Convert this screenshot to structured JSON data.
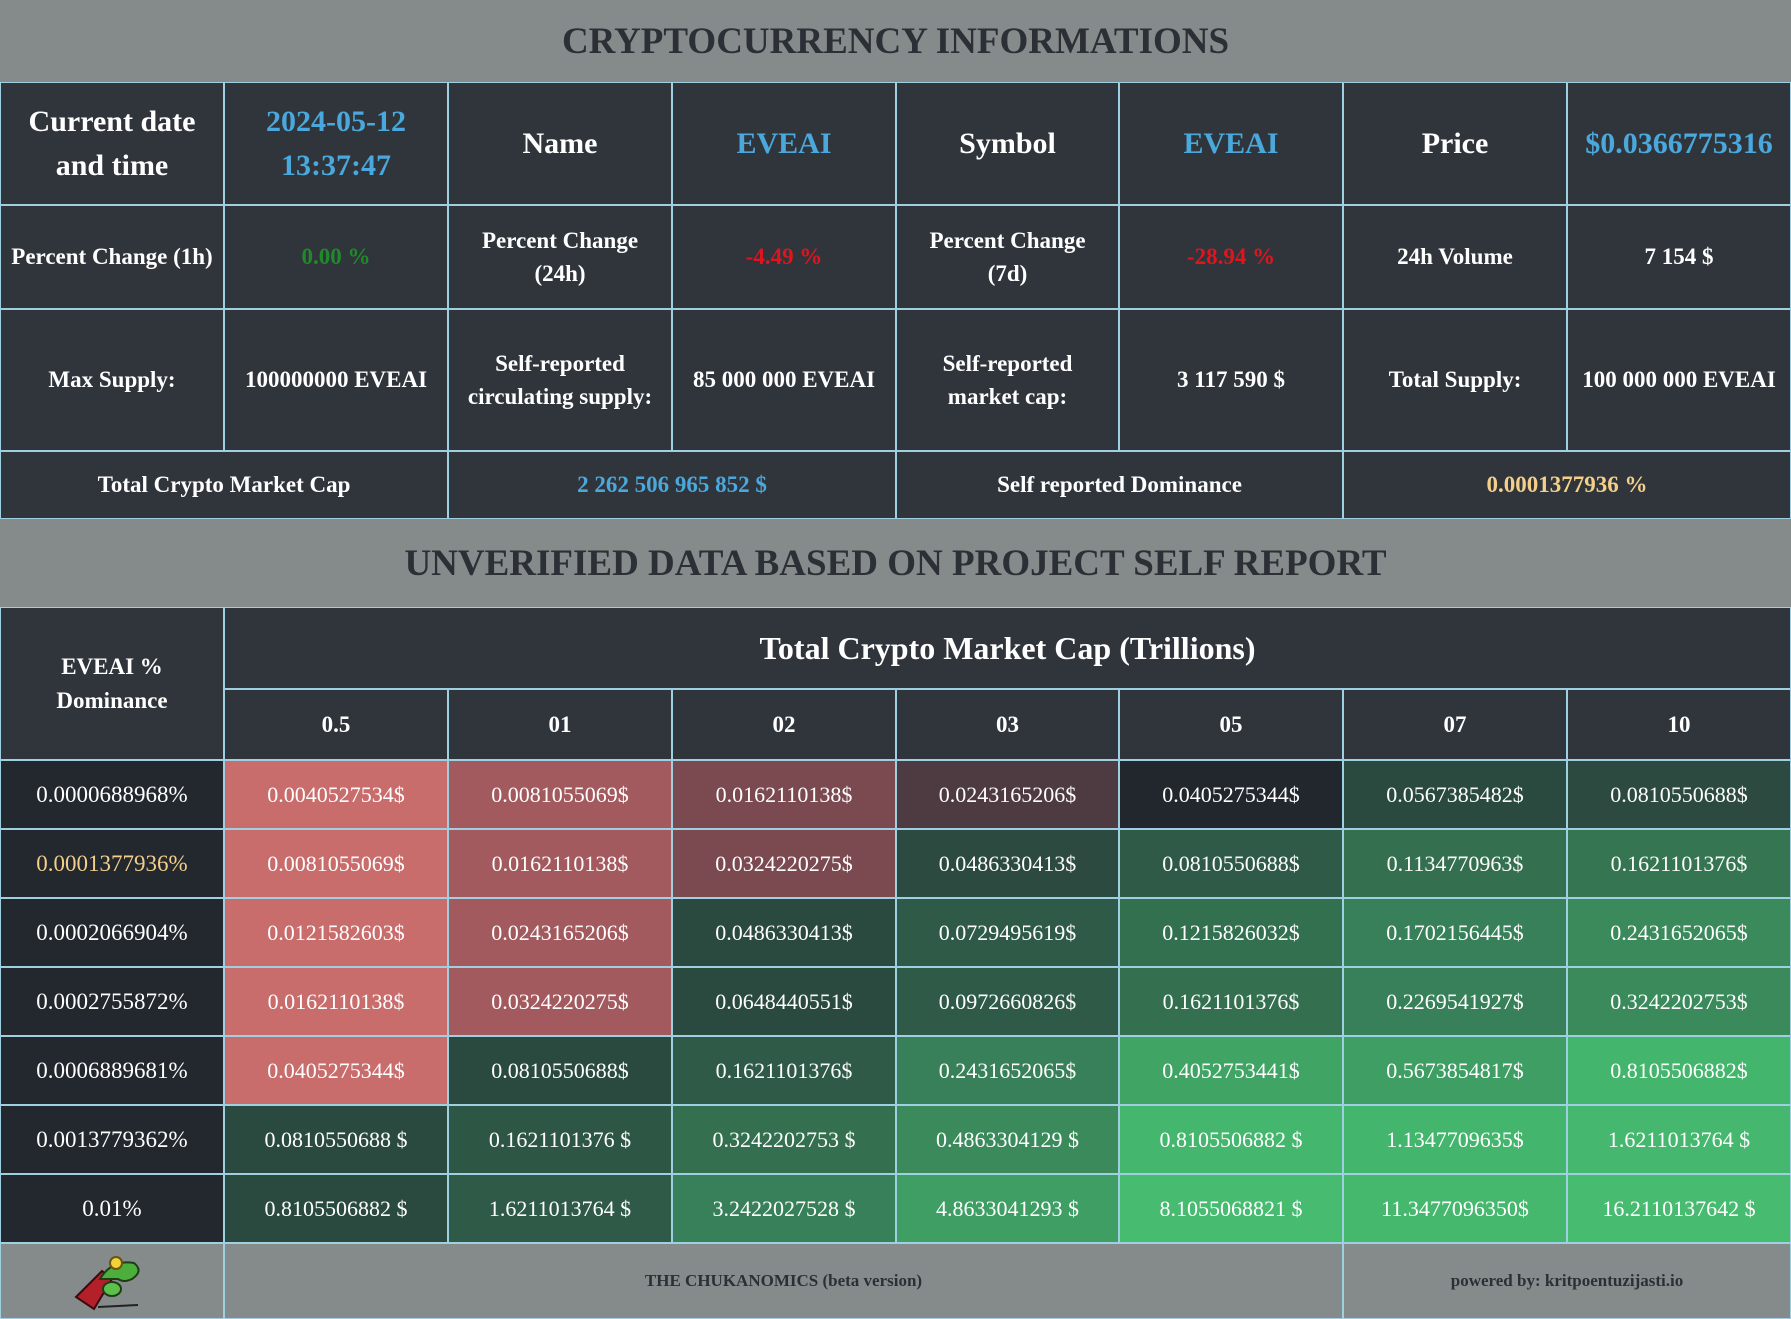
{
  "header": {
    "title": "CRYPTOCURRENCY INFORMATIONS"
  },
  "info": {
    "rows": [
      [
        "Current date and time",
        "2024-05-12 13:37:47",
        "Name",
        "EVEAI",
        "Symbol",
        "EVEAI",
        "Price",
        "$0.0366775316"
      ],
      [
        "Percent Change (1h)",
        "0.00 %",
        "Percent Change (24h)",
        "-4.49 %",
        "Percent Change (7d)",
        "-28.94 %",
        "24h Volume",
        "7 154 $"
      ],
      [
        "Max Supply:",
        "100000000 EVEAI",
        "Self-reported circulating supply:",
        "85 000 000 EVEAI",
        "Self-reported market cap:",
        "3 117 590 $",
        "Total Supply:",
        "100 000 000 EVEAI"
      ],
      [
        "Total Crypto Market Cap",
        "2 262 506 965 852 $",
        "Self reported Dominance",
        "0.0001377936 %"
      ]
    ]
  },
  "section_title": "UNVERIFIED DATA BASED ON PROJECT SELF REPORT",
  "matrix": {
    "corner": "EVEAI % Dominance",
    "caption": "Total Crypto Market Cap (Trillions)",
    "columns": [
      "0.5",
      "01",
      "02",
      "03",
      "05",
      "07",
      "10"
    ],
    "rows": [
      {
        "label": "0.0000688968%",
        "cells": [
          "0.0040527534$",
          "0.0081055069$",
          "0.0162110138$",
          "0.0243165206$",
          "0.0405275344$",
          "0.0567385482$",
          "0.0810550688$"
        ],
        "colors": [
          "#c86c6c",
          "#a35a5e",
          "#7a4a50",
          "#4e3b41",
          "#22272e",
          "#2b4a3f",
          "#2c4a3f"
        ]
      },
      {
        "label": "0.0001377936%",
        "cells": [
          "0.0081055069$",
          "0.0162110138$",
          "0.0324220275$",
          "0.0486330413$",
          "0.0810550688$",
          "0.1134770963$",
          "0.1621101376$"
        ],
        "colors": [
          "#c86c6c",
          "#a35a5e",
          "#7a4a50",
          "#2c4a3f",
          "#2f5a47",
          "#347050",
          "#367552"
        ]
      },
      {
        "label": "0.0002066904%",
        "cells": [
          "0.0121582603$",
          "0.0243165206$",
          "0.0486330413$",
          "0.0729495619$",
          "0.1215826032$",
          "0.1702156445$",
          "0.2431652065$"
        ],
        "colors": [
          "#c86c6c",
          "#a35a5e",
          "#2b4a3f",
          "#2f5a47",
          "#337050",
          "#378059",
          "#3a8a5c"
        ]
      },
      {
        "label": "0.0002755872%",
        "cells": [
          "0.0162110138$",
          "0.0324220275$",
          "0.0648440551$",
          "0.0972660826$",
          "0.1621101376$",
          "0.2269541927$",
          "0.3242202753$"
        ],
        "colors": [
          "#c86c6c",
          "#a35a5e",
          "#2b4a3f",
          "#2f5a47",
          "#347050",
          "#388059",
          "#3a8a5c"
        ]
      },
      {
        "label": "0.0006889681%",
        "cells": [
          "0.0405275344$",
          "0.0810550688$",
          "0.1621101376$",
          "0.2431652065$",
          "0.4052753441$",
          "0.5673854817$",
          "0.8105506882$"
        ],
        "colors": [
          "#c86c6c",
          "#2b4a3f",
          "#2f5a47",
          "#388059",
          "#40a465",
          "#3f9e63",
          "#44b56c"
        ]
      },
      {
        "label": "0.0013779362%",
        "cells": [
          "0.0810550688 $",
          "0.1621101376 $",
          "0.3242202753 $",
          "0.4863304129 $",
          "0.8105506882 $",
          "1.1347709635$",
          "1.6211013764 $"
        ],
        "colors": [
          "#2b4a3f",
          "#2e5645",
          "#347050",
          "#3a8a5c",
          "#45b66d",
          "#44b56c",
          "#46b76e"
        ]
      },
      {
        "label": "0.01%",
        "cells": [
          "0.8105506882 $",
          "1.6211013764 $",
          "3.2422027528 $",
          "4.8633041293 $",
          "8.1055068821 $",
          "11.3477096350$",
          "16.2110137642 $"
        ],
        "colors": [
          "#2b4a3f",
          "#2f5a47",
          "#378059",
          "#3f9e63",
          "#47bb70",
          "#46b86e",
          "#47bb70"
        ]
      }
    ]
  },
  "footer": {
    "brand": "THE CHUKANOMICS (beta version)",
    "powered": "powered by: kritpoentuzijasti.io"
  }
}
